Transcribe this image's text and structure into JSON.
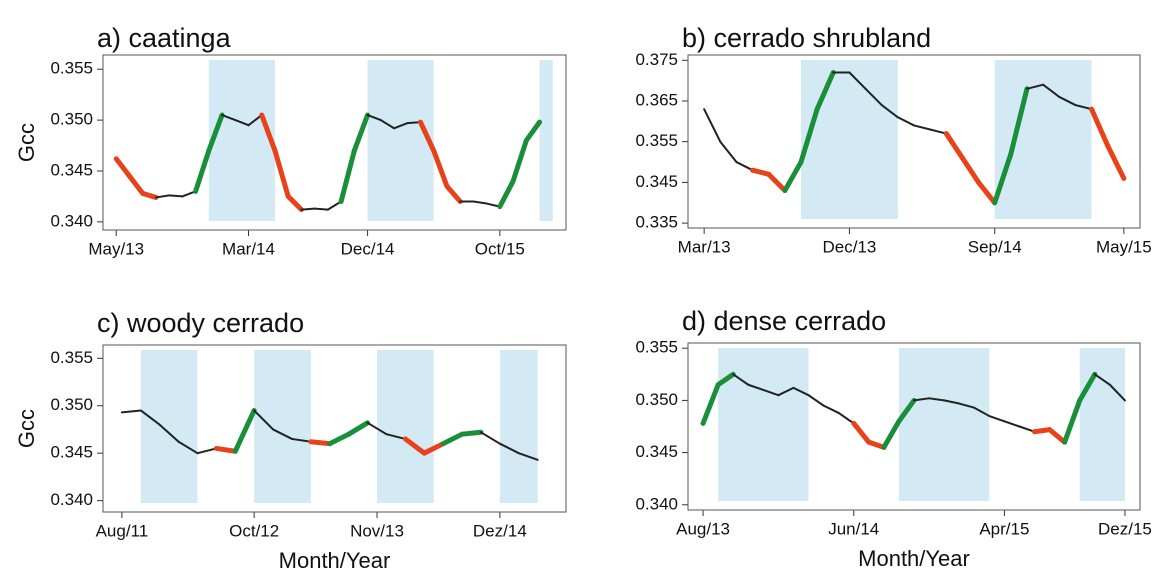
{
  "chart_data": [
    {
      "type": "line",
      "title": "a) caatinga",
      "ylabel": "Gcc",
      "xlim": [
        "2013-04",
        "2016-03"
      ],
      "ylim": [
        0.3392,
        0.3564
      ],
      "xticks": [
        {
          "value": "2013-05",
          "label": "May/13"
        },
        {
          "value": "2014-03",
          "label": "Mar/14"
        },
        {
          "value": "2014-12",
          "label": "Dec/14"
        },
        {
          "value": "2015-10",
          "label": "Oct/15"
        }
      ],
      "yticks": [
        {
          "value": 0.34,
          "label": "0.340"
        },
        0.345,
        {
          "value": 0.35,
          "label": "0.350"
        },
        0.355
      ],
      "shaded_periods": [
        [
          "2013-12",
          "2014-05"
        ],
        [
          "2014-12",
          "2015-05"
        ],
        [
          "2016-01",
          "2016-02"
        ]
      ],
      "shade_color": "#d3e9f4",
      "x": [
        "2013-05",
        "2013-06",
        "2013-07",
        "2013-08",
        "2013-09",
        "2013-10",
        "2013-11",
        "2013-12",
        "2014-01",
        "2014-02",
        "2014-03",
        "2014-04",
        "2014-05",
        "2014-06",
        "2014-07",
        "2014-08",
        "2014-09",
        "2014-10",
        "2014-11",
        "2014-12",
        "2015-01",
        "2015-02",
        "2015-03",
        "2015-04",
        "2015-05",
        "2015-06",
        "2015-07",
        "2015-08",
        "2015-09",
        "2015-10",
        "2015-11",
        "2015-12",
        "2016-01"
      ],
      "values": [
        0.3462,
        0.3445,
        0.3428,
        0.3424,
        0.3426,
        0.3425,
        0.343,
        0.347,
        0.3505,
        0.35,
        0.3495,
        0.3505,
        0.347,
        0.3425,
        0.3412,
        0.3413,
        0.3412,
        0.342,
        0.347,
        0.3505,
        0.35,
        0.3492,
        0.3497,
        0.3498,
        0.347,
        0.3435,
        0.342,
        0.342,
        0.3418,
        0.3415,
        0.344,
        0.348,
        0.3498
      ],
      "segment_colors": [
        "#e8421a",
        "#e8421a",
        "#e8421a",
        "#222222",
        "#222222",
        "#222222",
        "#1a8f3a",
        "#1a8f3a",
        "#222222",
        "#222222",
        "#222222",
        "#e8421a",
        "#e8421a",
        "#e8421a",
        "#222222",
        "#222222",
        "#222222",
        "#1a8f3a",
        "#1a8f3a",
        "#222222",
        "#222222",
        "#222222",
        "#222222",
        "#e8421a",
        "#e8421a",
        "#e8421a",
        "#222222",
        "#222222",
        "#222222",
        "#1a8f3a",
        "#1a8f3a",
        "#1a8f3a"
      ]
    },
    {
      "type": "line",
      "title": "b) cerrado shrubland",
      "xlim": [
        "2013-02",
        "2015-06"
      ],
      "ylim": [
        0.3338,
        0.3763
      ],
      "xticks": [
        {
          "value": "2013-03",
          "label": "Mar/13"
        },
        {
          "value": "2013-12",
          "label": "Dec/13"
        },
        {
          "value": "2014-09",
          "label": "Sep/14"
        },
        {
          "value": "2015-05",
          "label": "May/15"
        }
      ],
      "yticks": [
        0.335,
        0.345,
        0.355,
        0.365,
        0.375
      ],
      "shaded_periods": [
        [
          "2013-09",
          "2014-03"
        ],
        [
          "2014-09",
          "2015-03"
        ]
      ],
      "shade_color": "#d3e9f4",
      "x": [
        "2013-03",
        "2013-04",
        "2013-05",
        "2013-06",
        "2013-07",
        "2013-08",
        "2013-09",
        "2013-10",
        "2013-11",
        "2013-12",
        "2014-01",
        "2014-02",
        "2014-03",
        "2014-04",
        "2014-05",
        "2014-06",
        "2014-07",
        "2014-08",
        "2014-09",
        "2014-10",
        "2014-11",
        "2014-12",
        "2015-01",
        "2015-02",
        "2015-03",
        "2015-04",
        "2015-05"
      ],
      "values": [
        0.363,
        0.355,
        0.35,
        0.348,
        0.347,
        0.343,
        0.35,
        0.363,
        0.372,
        0.372,
        0.368,
        0.364,
        0.361,
        0.359,
        0.358,
        0.357,
        0.351,
        0.345,
        0.34,
        0.352,
        0.368,
        0.369,
        0.366,
        0.364,
        0.363,
        0.354,
        0.346
      ],
      "segment_colors": [
        "#222222",
        "#222222",
        "#222222",
        "#e8421a",
        "#e8421a",
        "#1a8f3a",
        "#1a8f3a",
        "#1a8f3a",
        "#222222",
        "#222222",
        "#222222",
        "#222222",
        "#222222",
        "#222222",
        "#222222",
        "#e8421a",
        "#e8421a",
        "#e8421a",
        "#1a8f3a",
        "#1a8f3a",
        "#222222",
        "#222222",
        "#222222",
        "#222222",
        "#e8421a",
        "#e8421a"
      ]
    },
    {
      "type": "line",
      "title": "c) woody cerrado",
      "ylabel": "Gcc",
      "xlabel": "Month/Year",
      "xlim": [
        "2011-06",
        "2015-07"
      ],
      "ylim": [
        0.3388,
        0.3564
      ],
      "xticks": [
        {
          "value": "2011-08",
          "label": "Aug/11"
        },
        {
          "value": "2012-10",
          "label": "Oct/12"
        },
        {
          "value": "2013-11",
          "label": "Nov/13"
        },
        {
          "value": "2014-12",
          "label": "Dez/14"
        }
      ],
      "yticks": [
        {
          "value": 0.34,
          "label": "0.340"
        },
        0.345,
        {
          "value": 0.35,
          "label": "0.350"
        },
        0.355
      ],
      "shaded_periods": [
        [
          "2011-10",
          "2012-04"
        ],
        [
          "2012-10",
          "2013-04"
        ],
        [
          "2013-11",
          "2014-05"
        ],
        [
          "2014-12",
          "2015-04"
        ]
      ],
      "shade_color": "#d3e9f4",
      "x": [
        "2011-08",
        "2011-10",
        "2011-12",
        "2012-02",
        "2012-04",
        "2012-06",
        "2012-08",
        "2012-10",
        "2012-12",
        "2013-02",
        "2013-04",
        "2013-06",
        "2013-08",
        "2013-10",
        "2013-12",
        "2014-02",
        "2014-04",
        "2014-06",
        "2014-08",
        "2014-10",
        "2014-12",
        "2015-02",
        "2015-04"
      ],
      "values": [
        0.3493,
        0.3495,
        0.348,
        0.3462,
        0.345,
        0.3455,
        0.3452,
        0.3495,
        0.3475,
        0.3465,
        0.3462,
        0.346,
        0.347,
        0.3482,
        0.347,
        0.3465,
        0.345,
        0.346,
        0.347,
        0.3472,
        0.346,
        0.345,
        0.3443
      ],
      "segment_colors": [
        "#222222",
        "#222222",
        "#222222",
        "#222222",
        "#222222",
        "#e8421a",
        "#1a8f3a",
        "#222222",
        "#222222",
        "#222222",
        "#e8421a",
        "#1a8f3a",
        "#1a8f3a",
        "#222222",
        "#222222",
        "#e8421a",
        "#e8421a",
        "#1a8f3a",
        "#1a8f3a",
        "#222222",
        "#222222",
        "#222222"
      ]
    },
    {
      "type": "line",
      "title": "d) dense cerrado",
      "xlabel": "Month/Year",
      "xlim": [
        "2013-07",
        "2016-01"
      ],
      "ylim": [
        0.3395,
        0.3555
      ],
      "xticks": [
        {
          "value": "2013-08",
          "label": "Aug/13"
        },
        {
          "value": "2014-06",
          "label": "Jun/14"
        },
        {
          "value": "2015-04",
          "label": "Apr/15"
        },
        {
          "value": "2015-12",
          "label": "Dez/15"
        }
      ],
      "yticks": [
        {
          "value": 0.34,
          "label": "0.340"
        },
        0.345,
        {
          "value": 0.35,
          "label": "0.350"
        },
        0.355
      ],
      "shaded_periods": [
        [
          "2013-09",
          "2014-03"
        ],
        [
          "2014-09",
          "2015-03"
        ],
        [
          "2015-09",
          "2015-12"
        ]
      ],
      "shade_color": "#d3e9f4",
      "x": [
        "2013-08",
        "2013-09",
        "2013-10",
        "2013-11",
        "2013-12",
        "2014-01",
        "2014-02",
        "2014-03",
        "2014-04",
        "2014-05",
        "2014-06",
        "2014-07",
        "2014-08",
        "2014-09",
        "2014-10",
        "2014-11",
        "2014-12",
        "2015-01",
        "2015-02",
        "2015-03",
        "2015-04",
        "2015-05",
        "2015-06",
        "2015-07",
        "2015-08",
        "2015-09",
        "2015-10",
        "2015-11",
        "2015-12"
      ],
      "values": [
        0.3478,
        0.3515,
        0.3525,
        0.3515,
        0.351,
        0.3505,
        0.3512,
        0.3505,
        0.3495,
        0.3488,
        0.3478,
        0.346,
        0.3455,
        0.348,
        0.35,
        0.3502,
        0.35,
        0.3497,
        0.3493,
        0.3485,
        0.348,
        0.3475,
        0.347,
        0.3472,
        0.346,
        0.35,
        0.3525,
        0.3515,
        0.35
      ],
      "segment_colors": [
        "#1a8f3a",
        "#1a8f3a",
        "#222222",
        "#222222",
        "#222222",
        "#222222",
        "#222222",
        "#222222",
        "#222222",
        "#222222",
        "#e8421a",
        "#e8421a",
        "#1a8f3a",
        "#1a8f3a",
        "#222222",
        "#222222",
        "#222222",
        "#222222",
        "#222222",
        "#222222",
        "#222222",
        "#222222",
        "#e8421a",
        "#e8421a",
        "#1a8f3a",
        "#1a8f3a",
        "#222222",
        "#222222"
      ]
    }
  ]
}
